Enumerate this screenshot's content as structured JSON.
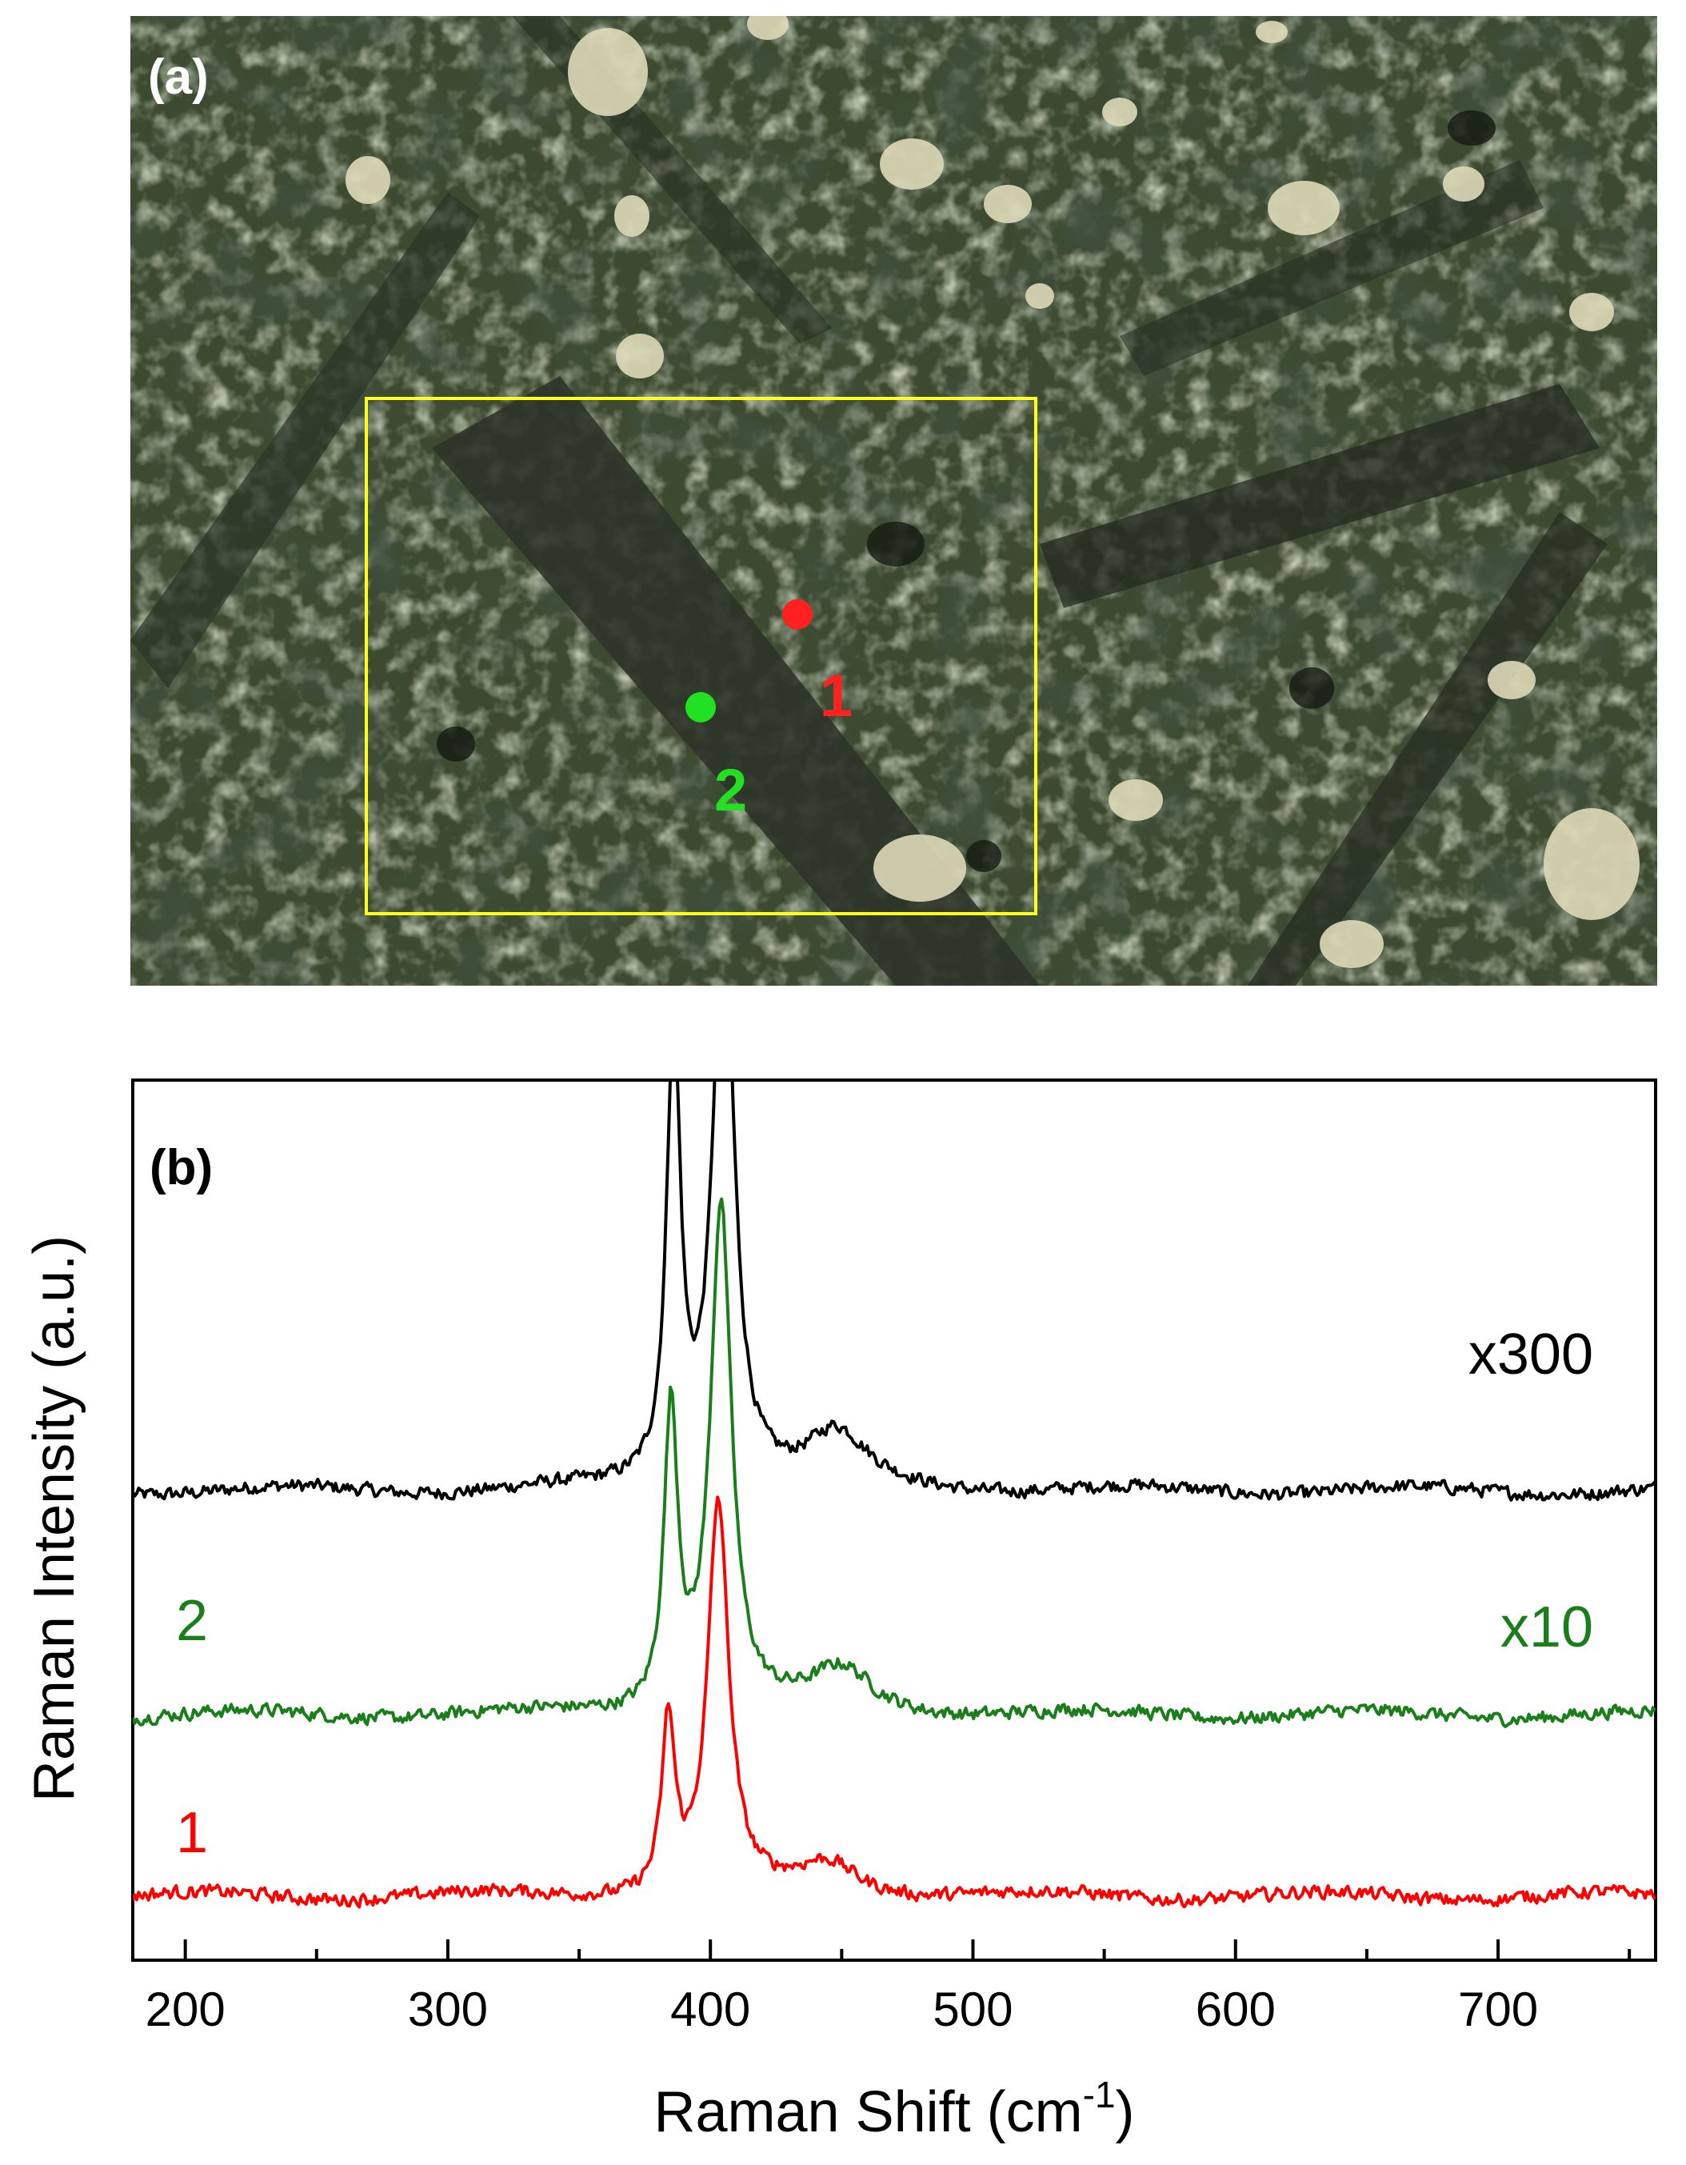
{
  "panel_a": {
    "label": "(a)",
    "points": [
      {
        "label": "1",
        "color": "#ff2020"
      },
      {
        "label": "2",
        "color": "#22e022"
      }
    ],
    "box_color": "#ffff22"
  },
  "chart_data": {
    "type": "line",
    "panel_label": "(b)",
    "xlabel_main": "Raman Shift (cm",
    "xlabel_sup": "-1",
    "xlabel_end": ")",
    "ylabel": "Raman Intensity (a.u.)",
    "xlim": [
      180,
      760
    ],
    "x_ticks": [
      200,
      300,
      400,
      500,
      600,
      700
    ],
    "x_tick_labels": [
      "200",
      "300",
      "400",
      "500",
      "600",
      "700"
    ],
    "y_ticks_shown": false,
    "series": [
      {
        "color": "#000000",
        "name": "",
        "scale_label": "x300",
        "offset": 0.88,
        "peaks": [
          {
            "x": 386,
            "h": 0.84,
            "w": 3.2
          },
          {
            "x": 405,
            "h": 1.11,
            "w": 4.8
          },
          {
            "x": 448,
            "h": 0.1,
            "w": 14
          }
        ]
      },
      {
        "color": "#1a7f1a",
        "name": "2",
        "scale_label": "x10",
        "offset": 0.46,
        "peaks": [
          {
            "x": 385,
            "h": 0.56,
            "w": 3.2
          },
          {
            "x": 404,
            "h": 0.95,
            "w": 4.8
          },
          {
            "x": 450,
            "h": 0.08,
            "w": 14
          }
        ]
      },
      {
        "color": "#ff0000",
        "name": "1",
        "scale_label": "",
        "offset": 0.12,
        "peaks": [
          {
            "x": 384,
            "h": 0.32,
            "w": 3.0
          },
          {
            "x": 403,
            "h": 0.73,
            "w": 4.8
          },
          {
            "x": 445,
            "h": 0.06,
            "w": 14
          }
        ]
      }
    ]
  }
}
